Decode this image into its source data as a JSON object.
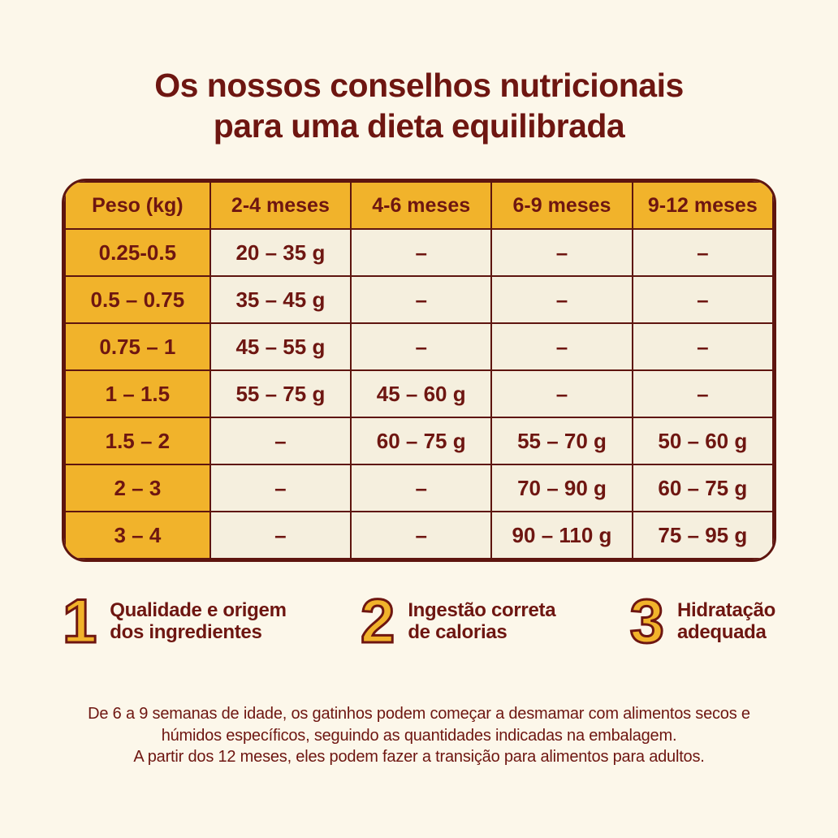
{
  "colors": {
    "background": "#FCF7EA",
    "cell_background": "#F5EFDE",
    "accent_gold": "#F1B32B",
    "text_maroon": "#6E1611",
    "border_maroon": "#5E150F"
  },
  "title": {
    "line1": "Os nossos conselhos nutricionais",
    "line2": "para uma dieta equilibrada"
  },
  "table": {
    "headers": [
      "Peso (kg)",
      "2-4 meses",
      "4-6 meses",
      "6-9 meses",
      "9-12 meses"
    ],
    "rows": [
      {
        "weight": "0.25-0.5",
        "values": [
          "20 – 35 g",
          "–",
          "–",
          "–"
        ]
      },
      {
        "weight": "0.5 – 0.75",
        "values": [
          "35 – 45 g",
          "–",
          "–",
          "–"
        ]
      },
      {
        "weight": "0.75 – 1",
        "values": [
          "45 – 55 g",
          "–",
          "–",
          "–"
        ]
      },
      {
        "weight": "1 – 1.5",
        "values": [
          "55 – 75 g",
          "45 – 60 g",
          "–",
          "–"
        ]
      },
      {
        "weight": "1.5 – 2",
        "values": [
          "–",
          "60 – 75 g",
          "55 – 70 g",
          "50 – 60 g"
        ]
      },
      {
        "weight": "2 – 3",
        "values": [
          "–",
          "–",
          "70 – 90 g",
          "60 – 75 g"
        ]
      },
      {
        "weight": "3 – 4",
        "values": [
          "–",
          "–",
          "90 – 110 g",
          "75 – 95 g"
        ]
      }
    ]
  },
  "tips": [
    {
      "number": "1",
      "line1": "Qualidade e origem",
      "line2": "dos ingredientes"
    },
    {
      "number": "2",
      "line1": "Ingestão correta",
      "line2": "de calorias"
    },
    {
      "number": "3",
      "line1": "Hidratação",
      "line2": "adequada"
    }
  ],
  "footer": {
    "line1": "De 6 a 9 semanas de idade, os gatinhos podem começar a desmamar com alimentos secos e",
    "line2": "húmidos específicos, seguindo as quantidades indicadas na embalagem.",
    "line3": "A partir dos 12 meses, eles podem fazer a transição para alimentos para adultos."
  }
}
